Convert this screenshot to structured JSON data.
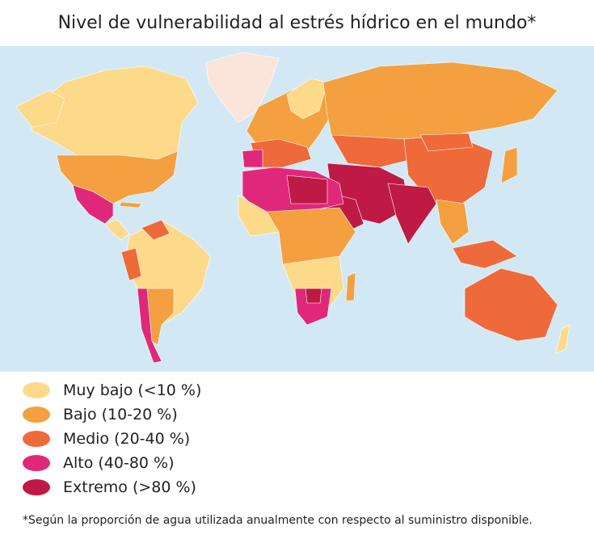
{
  "title": "Nivel de vulnerabilidad al estrés hídrico en el mundo*",
  "map": {
    "ocean_color": "#D2E9F5",
    "no_data_color": "#FBE4DA"
  },
  "legend": [
    {
      "label": "Muy bajo (<10 %)",
      "color": "#FDD98A"
    },
    {
      "label": "Bajo (10-20 %)",
      "color": "#F4A040"
    },
    {
      "label": "Medio (20-40 %)",
      "color": "#EE6A3A"
    },
    {
      "label": "Alto (40-80 %)",
      "color": "#E0287A"
    },
    {
      "label": "Extremo (>80 %)",
      "color": "#BE1A45"
    }
  ],
  "footnote": "*Según la proporción de agua utilizada anualmente con respecto al suministro disponible."
}
